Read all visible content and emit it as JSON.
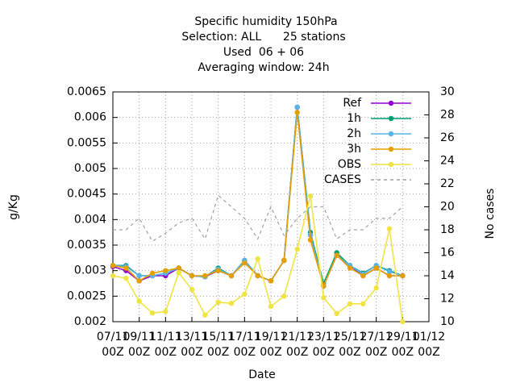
{
  "chart_data": {
    "type": "line",
    "title": "Specific humidity 150hPa",
    "subtitle": [
      "Selection: ALL      25 stations",
      "Used  06 + 06",
      "Averaging window: 24h"
    ],
    "x_label": "Date",
    "y_label": "g/Kg",
    "y2_label": "No cases",
    "categories": [
      "07/11\n00Z",
      null,
      "09/11\n00Z",
      null,
      "11/11\n00Z",
      null,
      "13/11\n00Z",
      null,
      "15/11\n00Z",
      null,
      "17/11\n00Z",
      null,
      "19/11\n00Z",
      null,
      "21/11\n00Z",
      null,
      "23/11\n00Z",
      null,
      "25/11\n00Z",
      null,
      "27/11\n00Z",
      null,
      "29/11\n00Z",
      null,
      "01/12\n00Z"
    ],
    "series": [
      {
        "name": "Ref",
        "color": "#9400d3",
        "values": [
          0.00308,
          0.003,
          0.0028,
          0.0029,
          0.0029,
          0.00305,
          0.0029,
          0.00288,
          0.003,
          0.0029,
          0.0032,
          0.0029,
          0.0028,
          0.0032,
          0.0062,
          0.0037,
          0.0027,
          0.0033,
          0.0031,
          0.0029,
          0.00305,
          0.0029,
          0.0029,
          null,
          null
        ]
      },
      {
        "name": "1h",
        "color": "#009e73",
        "values": [
          0.0031,
          0.0031,
          0.0029,
          0.0029,
          0.00295,
          0.00305,
          0.0029,
          0.00288,
          0.00305,
          0.0029,
          0.0032,
          0.0029,
          0.0028,
          0.0032,
          0.0062,
          0.00375,
          0.00275,
          0.00335,
          0.0031,
          0.00295,
          0.0031,
          0.003,
          0.0029,
          null,
          null
        ]
      },
      {
        "name": "2h",
        "color": "#56b4e9",
        "values": [
          0.0031,
          0.00308,
          0.0029,
          0.0029,
          0.00295,
          0.00305,
          0.0029,
          0.00288,
          0.00303,
          0.0029,
          0.0032,
          0.0029,
          0.0028,
          0.0032,
          0.0062,
          0.0037,
          0.0027,
          0.0033,
          0.0031,
          0.00293,
          0.0031,
          0.00298,
          0.0029,
          null,
          null
        ]
      },
      {
        "name": "3h",
        "color": "#e69f00",
        "values": [
          0.0031,
          0.00305,
          0.0028,
          0.00295,
          0.003,
          0.00305,
          0.0029,
          0.0029,
          0.003,
          0.0029,
          0.00315,
          0.0029,
          0.0028,
          0.0032,
          0.0061,
          0.0036,
          0.0027,
          0.0033,
          0.00305,
          0.0029,
          0.00305,
          0.0029,
          0.0029,
          null,
          null
        ]
      },
      {
        "name": "OBS",
        "color": "#f0e442",
        "values": [
          0.0029,
          0.00285,
          0.0024,
          0.00217,
          0.0022,
          0.00296,
          0.00263,
          0.00213,
          0.00238,
          0.00236,
          0.00254,
          0.00323,
          0.0023,
          0.0025,
          0.00342,
          0.00446,
          0.00247,
          0.00216,
          0.00235,
          0.00235,
          0.00266,
          0.00382,
          0.002,
          null,
          null
        ]
      },
      {
        "name": "CASES",
        "color": "#a0a0a0",
        "axis": "y2",
        "dashed": true,
        "values": [
          18,
          18,
          19,
          17,
          17.7,
          18.6,
          19,
          17.2,
          21,
          20,
          19,
          17.2,
          20,
          17.5,
          19,
          20,
          20,
          17.2,
          18,
          18,
          19,
          19,
          20,
          null,
          null
        ]
      }
    ],
    "ylim": [
      0.002,
      0.0065
    ],
    "yticks": [
      0.002,
      0.0025,
      0.003,
      0.0035,
      0.004,
      0.0045,
      0.005,
      0.0055,
      0.006,
      0.0065
    ],
    "y2lim": [
      10,
      30
    ],
    "y2ticks": [
      10,
      12,
      14,
      16,
      18,
      20,
      22,
      24,
      26,
      28,
      30
    ],
    "grid": true,
    "legend": "top-right"
  }
}
